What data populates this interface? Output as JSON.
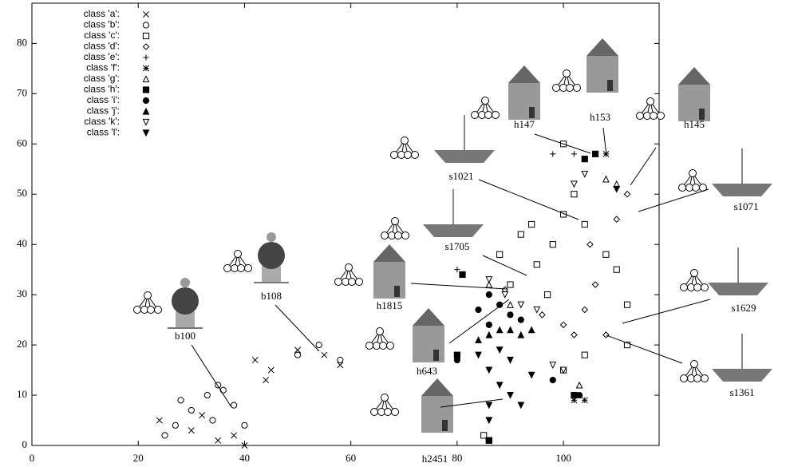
{
  "chart_data": {
    "type": "scatter",
    "xlim": [
      0,
      118
    ],
    "ylim": [
      0,
      88
    ],
    "xticks": [
      0,
      20,
      40,
      60,
      80,
      100
    ],
    "yticks": [
      0,
      10,
      20,
      30,
      40,
      50,
      60,
      70,
      80
    ],
    "series": [
      {
        "name": "class 'a':",
        "marker": "x",
        "color": "#000000",
        "x": [
          24,
          30,
          35,
          40,
          42,
          45,
          50,
          55,
          58,
          44,
          38,
          32
        ],
        "y": [
          5,
          3,
          1,
          0,
          17,
          15,
          19,
          18,
          16,
          13,
          2,
          6
        ]
      },
      {
        "name": "class 'b':",
        "marker": "circle",
        "color": "#000000",
        "x": [
          25,
          28,
          30,
          33,
          36,
          38,
          40,
          27,
          34,
          50,
          54,
          58,
          35
        ],
        "y": [
          2,
          9,
          7,
          10,
          11,
          8,
          4,
          4,
          5,
          18,
          20,
          17,
          12
        ]
      },
      {
        "name": "class 'c':",
        "marker": "square",
        "color": "#000000",
        "x": [
          88,
          92,
          95,
          98,
          100,
          102,
          97,
          110,
          112,
          108,
          104,
          100,
          104,
          85,
          86,
          100,
          94,
          90,
          112
        ],
        "y": [
          38,
          42,
          36,
          40,
          46,
          50,
          30,
          35,
          28,
          38,
          44,
          15,
          18,
          2,
          1,
          60,
          44,
          32,
          20
        ]
      },
      {
        "name": "class 'd':",
        "marker": "diamond",
        "color": "#000000",
        "x": [
          100,
          104,
          106,
          108,
          110,
          112,
          102,
          96,
          105,
          89
        ],
        "y": [
          24,
          27,
          32,
          22,
          45,
          50,
          22,
          26,
          40,
          31
        ]
      },
      {
        "name": "class 'e':",
        "marker": "plus",
        "color": "#000000",
        "x": [
          80,
          102,
          98
        ],
        "y": [
          35,
          58,
          58
        ]
      },
      {
        "name": "class 'f':",
        "marker": "star",
        "color": "#000000",
        "x": [
          108,
          102,
          104
        ],
        "y": [
          58,
          9,
          9
        ]
      },
      {
        "name": "class 'g':",
        "marker": "triangle-up",
        "color": "#000000",
        "x": [
          86,
          90,
          108,
          110,
          103
        ],
        "y": [
          32,
          28,
          53,
          52,
          12
        ]
      },
      {
        "name": "class 'h':",
        "marker": "square-filled",
        "color": "#000000",
        "x": [
          86,
          81,
          106,
          104,
          80,
          102
        ],
        "y": [
          1,
          34,
          58,
          57,
          18,
          10
        ]
      },
      {
        "name": "class 'i':",
        "marker": "circle-filled",
        "color": "#000000",
        "x": [
          84,
          86,
          88,
          90,
          92,
          80,
          98,
          103,
          86
        ],
        "y": [
          27,
          30,
          28,
          26,
          25,
          17,
          13,
          10,
          24
        ]
      },
      {
        "name": "class 'j':",
        "marker": "triangle-up-filled",
        "color": "#000000",
        "x": [
          86,
          88,
          90,
          92,
          94,
          84
        ],
        "y": [
          22,
          23,
          23,
          22,
          23,
          21
        ]
      },
      {
        "name": "class 'k':",
        "marker": "triangle-down",
        "color": "#000000",
        "x": [
          86,
          89,
          92,
          104,
          102,
          98,
          100,
          95
        ],
        "y": [
          33,
          30,
          28,
          54,
          52,
          16,
          15,
          27
        ]
      },
      {
        "name": "class 'l':",
        "marker": "triangle-down-filled",
        "color": "#000000",
        "x": [
          84,
          86,
          88,
          90,
          92,
          86,
          88,
          90,
          94,
          86,
          110
        ],
        "y": [
          18,
          15,
          12,
          10,
          8,
          5,
          19,
          17,
          14,
          8,
          51
        ]
      }
    ],
    "annotations": [
      "b100",
      "b108",
      "h1815",
      "h643",
      "h2451",
      "s1705",
      "s1021",
      "h147",
      "h153",
      "h145",
      "s1071",
      "s1629",
      "s1361"
    ]
  }
}
